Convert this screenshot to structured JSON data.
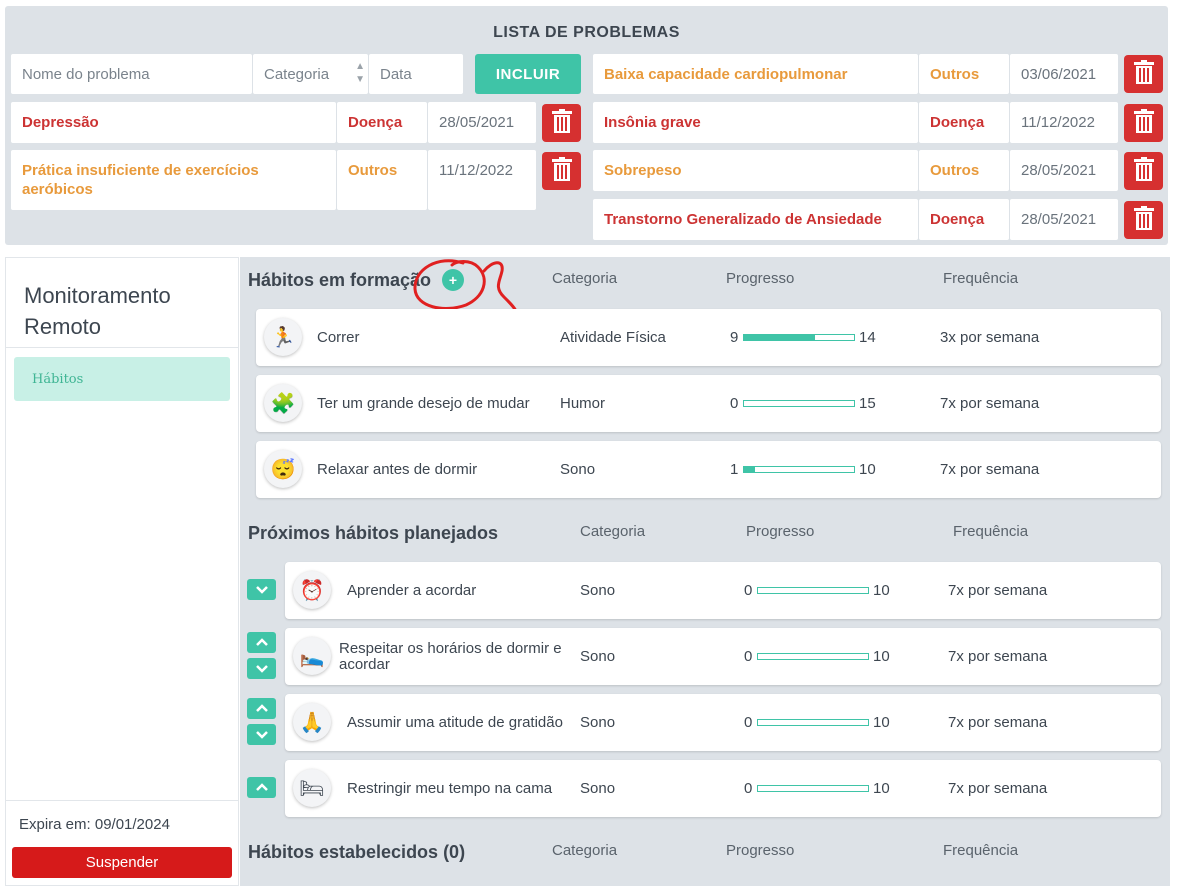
{
  "problems": {
    "title": "LISTA DE PROBLEMAS",
    "form": {
      "name_placeholder": "Nome do problema",
      "category_placeholder": "Categoria",
      "date_placeholder": "Data",
      "include_label": "INCLUIR"
    },
    "left_items": [
      {
        "name": "Depressão",
        "category": "Doença",
        "date": "28/05/2021",
        "color": "#cc3333"
      },
      {
        "name": "Prática insuficiente de exercícios aeróbicos",
        "category": "Outros",
        "date": "11/12/2022",
        "color": "#e89a3c"
      }
    ],
    "right_items": [
      {
        "name": "Baixa capacidade cardiopulmonar",
        "category": "Outros",
        "date": "03/06/2021",
        "color": "#e89a3c"
      },
      {
        "name": "Insônia grave",
        "category": "Doença",
        "date": "11/12/2022",
        "color": "#cc3333"
      },
      {
        "name": "Sobrepeso",
        "category": "Outros",
        "date": "28/05/2021",
        "color": "#e89a3c"
      },
      {
        "name": "Transtorno Generalizado de Ansiedade",
        "category": "Doença",
        "date": "28/05/2021",
        "color": "#cc3333"
      }
    ]
  },
  "sidebar": {
    "title": "Monitoramento Remoto",
    "items": [
      {
        "label": "Hábitos"
      }
    ],
    "expira": "Expira em: 09/01/2024",
    "suspender": "Suspender"
  },
  "habits_forming": {
    "title": "Hábitos em formação",
    "add_icon": "plus-icon",
    "headers": {
      "category": "Categoria",
      "progress": "Progresso",
      "frequency": "Frequência"
    },
    "items": [
      {
        "icon": "runner-icon",
        "name": "Correr",
        "category": "Atividade Física",
        "progress": 9,
        "max": 14,
        "frequency": "3x por semana"
      },
      {
        "icon": "mood-icon",
        "name": "Ter um grande desejo de mudar",
        "category": "Humor",
        "progress": 0,
        "max": 15,
        "frequency": "7x por semana"
      },
      {
        "icon": "sleep-mask-icon",
        "name": "Relaxar antes de dormir",
        "category": "Sono",
        "progress": 1,
        "max": 10,
        "frequency": "7x por semana"
      }
    ]
  },
  "habits_planned": {
    "title": "Próximos hábitos planejados",
    "headers": {
      "category": "Categoria",
      "progress": "Progresso",
      "frequency": "Frequência"
    },
    "items": [
      {
        "icon": "alarm-clock-icon",
        "name": "Aprender a acordar",
        "category": "Sono",
        "progress": 0,
        "max": 10,
        "frequency": "7x por semana"
      },
      {
        "icon": "sleeping-person-icon",
        "name": "Respeitar os horários de dormir e acordar",
        "category": "Sono",
        "progress": 0,
        "max": 10,
        "frequency": "7x por semana"
      },
      {
        "icon": "gratitude-person-icon",
        "name": "Assumir uma atitude de gratidão",
        "category": "Sono",
        "progress": 0,
        "max": 10,
        "frequency": "7x por semana"
      },
      {
        "icon": "bed-icon",
        "name": "Restringir meu tempo na cama",
        "category": "Sono",
        "progress": 0,
        "max": 10,
        "frequency": "7x por semana"
      }
    ]
  },
  "habits_established": {
    "title": "Hábitos estabelecidos (0)",
    "headers": {
      "category": "Categoria",
      "progress": "Progresso",
      "frequency": "Frequência"
    }
  },
  "colors": {
    "accent": "#3fc4a7",
    "danger": "#d63030",
    "orange": "#e89a3c",
    "red": "#cc3333",
    "annotation": "#e02020"
  }
}
